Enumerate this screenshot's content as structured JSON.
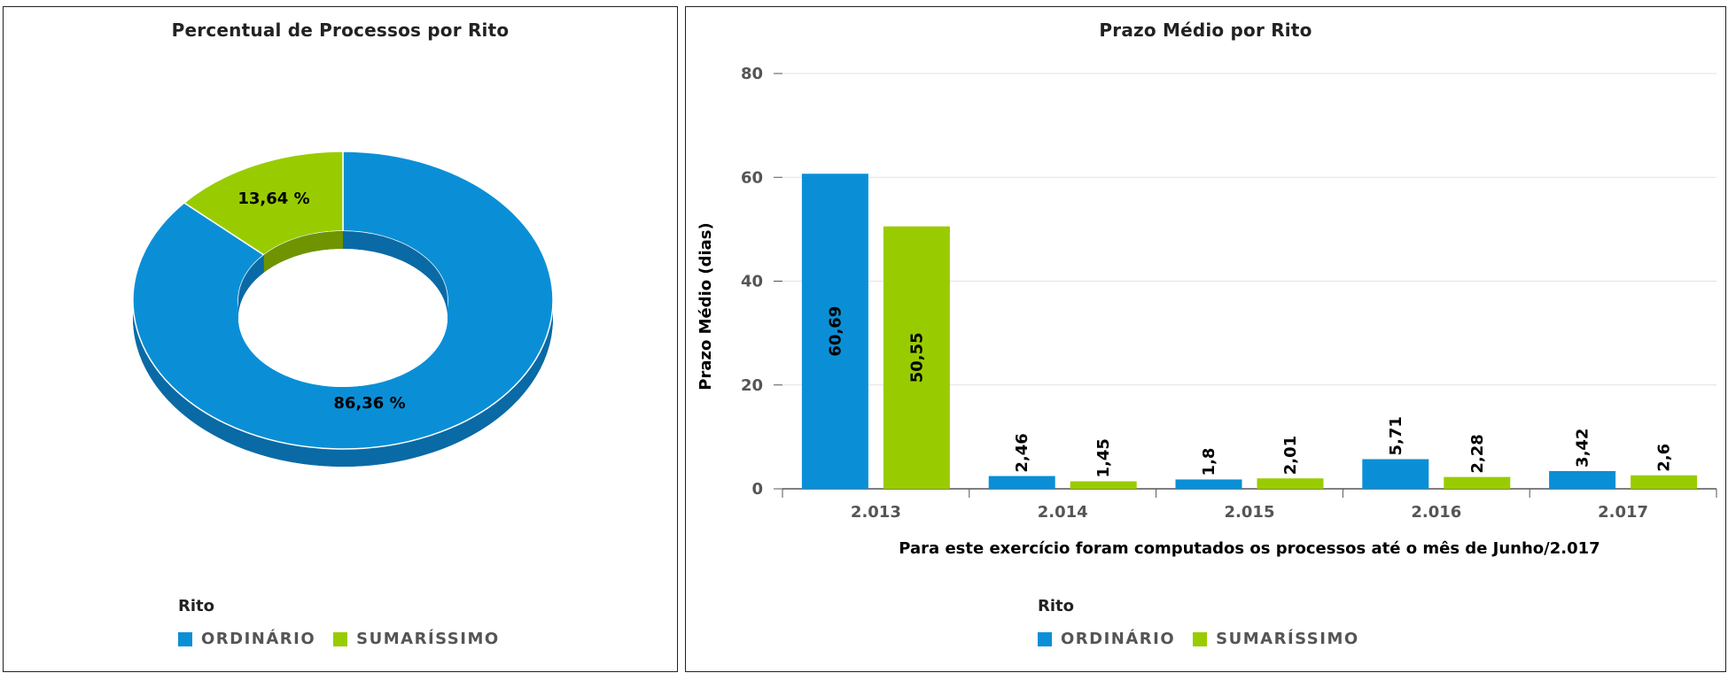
{
  "colors": {
    "ordinario": "#0a8fd6",
    "sumarissimo": "#99cc00",
    "ordinario_dark": "#0a6aa6",
    "sumarissimo_dark": "#6f9400"
  },
  "legend": {
    "title": "Rito",
    "items": [
      {
        "label": "ORDINÁRIO",
        "color": "#0a8fd6"
      },
      {
        "label": "SUMARÍSSIMO",
        "color": "#99cc00"
      }
    ]
  },
  "chart_data": [
    {
      "type": "pie",
      "title": "Percentual de Processos por Rito",
      "donut": true,
      "slices": [
        {
          "name": "ORDINÁRIO",
          "value": 86.36,
          "label": "86,36 %"
        },
        {
          "name": "SUMARÍSSIMO",
          "value": 13.64,
          "label": "13,64 %"
        }
      ],
      "legend_position": "bottom-left"
    },
    {
      "type": "bar",
      "title": "Prazo Médio por Rito",
      "xlabel": "Para este exercício foram computados os processos até o mês de Junho/2.017",
      "ylabel": "Prazo Médio (dias)",
      "categories": [
        "2.013",
        "2.014",
        "2.015",
        "2.016",
        "2.017"
      ],
      "series": [
        {
          "name": "ORDINÁRIO",
          "values": [
            60.69,
            2.46,
            1.8,
            5.71,
            3.42
          ],
          "labels": [
            "60,69",
            "2,46",
            "1,8",
            "5,71",
            "3,42"
          ]
        },
        {
          "name": "SUMARÍSSIMO",
          "values": [
            50.55,
            1.45,
            2.01,
            2.28,
            2.6
          ],
          "labels": [
            "50,55",
            "1,45",
            "2,01",
            "2,28",
            "2,6"
          ]
        }
      ],
      "yticks": [
        0,
        20,
        40,
        60,
        80
      ],
      "ylim": [
        0,
        80
      ],
      "grid": true,
      "legend_position": "bottom-center"
    }
  ]
}
